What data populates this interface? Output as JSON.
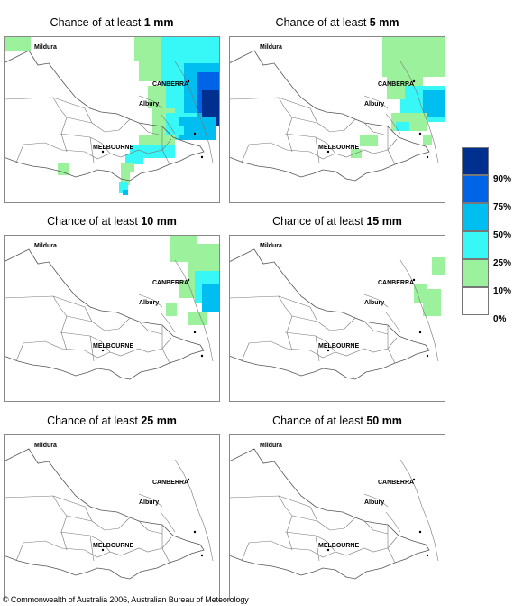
{
  "panels": [
    {
      "prefix": "Chance of at least ",
      "amount": "1 mm",
      "level": 0
    },
    {
      "prefix": "Chance of at least ",
      "amount": "5 mm",
      "level": 1
    },
    {
      "prefix": "Chance of at least ",
      "amount": "10 mm",
      "level": 2
    },
    {
      "prefix": "Chance of at least ",
      "amount": "15 mm",
      "level": 3
    },
    {
      "prefix": "Chance of at least ",
      "amount": "25 mm",
      "level": 4
    },
    {
      "prefix": "Chance of at least ",
      "amount": "50 mm",
      "level": 5
    }
  ],
  "cities": {
    "mildura": "Mildura",
    "canberra": "CANBERRA",
    "albury": "Albury",
    "melbourne": "MELBOURNE"
  },
  "legend": {
    "colors": [
      "#00308f",
      "#0064e6",
      "#00bef0",
      "#38f7f7",
      "#9cf29c",
      "#ffffff"
    ],
    "labels": [
      "90%",
      "75%",
      "50%",
      "25%",
      "10%",
      "0%"
    ]
  },
  "copyright": "© Commonwealth of Australia 2006, Australian Bureau of Meteorology"
}
